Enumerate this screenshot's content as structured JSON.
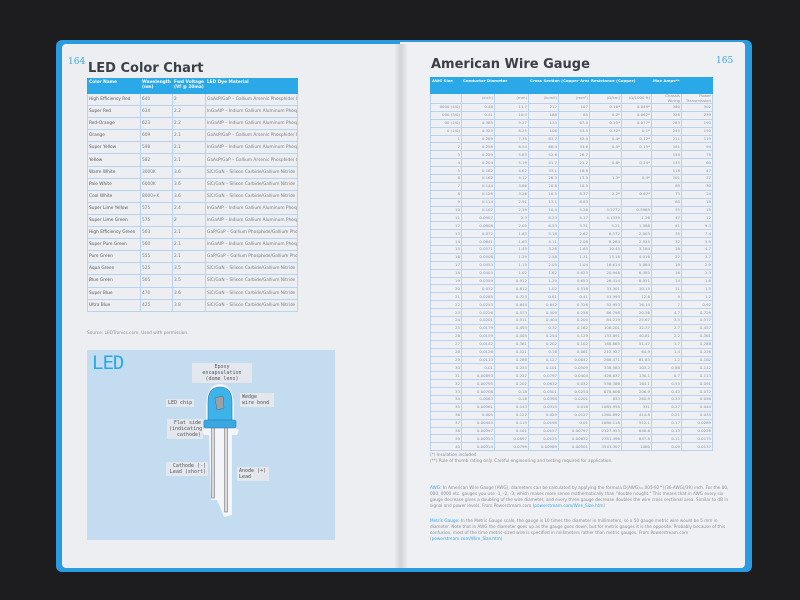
{
  "left_page": {
    "page_number": "164",
    "title": "LED Color Chart",
    "table": {
      "headers": [
        "Color Name",
        "Wavelength (nm)",
        "Fwd Voltage (Vf @ 20ma)",
        "LED Dye Material"
      ],
      "rows": [
        [
          "High Efficiency Red",
          "640",
          "2",
          "GaAsP/GaP – Gallium Arsenic Phosphide/ Gallium Phosphide"
        ],
        [
          "Super Red",
          "634",
          "2.2",
          "InGaAIP – Indium Gallium Aluminum Phosphide"
        ],
        [
          "Red-Orange",
          "623",
          "2.2",
          "InGaAIP – Indium Gallium Aluminum Phosphide"
        ],
        [
          "Orange",
          "609",
          "2.1",
          "GaAsP/GaP – Gallium Arsenic Phosphide/ Gallium Phosphide"
        ],
        [
          "Super Yellow",
          "598",
          "2.1",
          "InGaAIP – Indium Gallium Aluminum Phosphide"
        ],
        [
          "Yellow",
          "582",
          "2.1",
          "GaAsP/GaP – Gallium Arsenic Phosphide/ Gallium Phosphide"
        ],
        [
          "Warm White",
          "3000K",
          "3.6",
          "SiC/GaN – Silicon Carbide/Gallium Nitride"
        ],
        [
          "Pale White",
          "6000K",
          "3.6",
          "SiC/GaN – Silicon Carbide/Gallium Nitride"
        ],
        [
          "Cool White",
          "8000+K",
          "3.6",
          "SiC/GaN – Silicon Carbide/Gallium Nitride"
        ],
        [
          "Super Lime Yellow",
          "575",
          "2.4",
          "InGaAIP – Indium Gallium Aluminum Phosphide"
        ],
        [
          "Super Lime Green",
          "575",
          "2",
          "InGaAIP – Indium Gallium Aluminum Phosphide"
        ],
        [
          "High Efficiency Green",
          "563",
          "2.1",
          "GaP/GaP – Gallium Phosphide/Gallium Phosphide"
        ],
        [
          "Super Pure Green",
          "560",
          "2.1",
          "InGaAIP – Indium Gallium Aluminum Phosphide"
        ],
        [
          "Pure Green",
          "555",
          "2.1",
          "GaP/GaP – Gallium Phosphide/Gallium Phosphide"
        ],
        [
          "Aqua Green",
          "525",
          "3.5",
          "SiC/GaN – Silicon Carbide/Gallium Nitride"
        ],
        [
          "Blue Green",
          "505",
          "3.5",
          "SiC/GaN – Silicon Carbide/Gallium Nitride"
        ],
        [
          "Super Blue",
          "470",
          "3.6",
          "SiC/GaN – Silicon Carbide/Gallium Nitride"
        ],
        [
          "Ultra Blue",
          "425",
          "3.8",
          "SiC/GaN – Silicon Carbide/Gallium Nitride"
        ]
      ]
    },
    "source": "Source: LEDTronics.com. Used with permission.",
    "led_diagram": {
      "title": "LED",
      "labels": {
        "epoxy": "Epoxy encapsulation (dome lens)",
        "chip": "LED chip",
        "wedge": "Wedge wire bond",
        "flat": "Flat side (indicating cathode)",
        "cathode": "Cathode (-) Lead (short)",
        "anode": "Anode (+) Lead"
      }
    }
  },
  "right_page": {
    "page_number": "165",
    "title": "American Wire Gauge",
    "table": {
      "headers": [
        "AWG Size",
        "Conductor Diameter",
        "Cross Section (Copper Area)",
        "Resistance (Copper)",
        "Max Amps**"
      ],
      "subheaders": [
        "",
        "(inch)",
        "(mm)",
        "(kcmil)",
        "(mm²)",
        "(Ω/km)",
        "(Ω/1000 ft)",
        "Chassis Wiring",
        "Power Transmission"
      ],
      "rows": [
        [
          "0000 (4/0)",
          "0.46",
          "11.7",
          "212",
          "107",
          "0.16*",
          "0.049*",
          "380",
          "302"
        ],
        [
          "000 (3/0)",
          "0.41",
          "10.4",
          "168",
          "85",
          "0.2*",
          "0.062*",
          "328",
          "239"
        ],
        [
          "00 (2/0)",
          "0.365",
          "9.27",
          "133",
          "67.4",
          "0.25*",
          "0.077*",
          "283",
          "190"
        ],
        [
          "0 (1/0)",
          "0.325",
          "8.25",
          "106",
          "53.5",
          "0.32*",
          "0.1*",
          "245",
          "150"
        ],
        [
          "1",
          "0.289",
          "7.35",
          "83.7",
          "42.4",
          "0.4*",
          "0.12*",
          "211",
          "119"
        ],
        [
          "2",
          "0.258",
          "6.54",
          "66.4",
          "33.6",
          "0.5*",
          "0.15*",
          "181",
          "94"
        ],
        [
          "3",
          "0.229",
          "5.83",
          "52.6",
          "26.7",
          "",
          "",
          "158",
          "75"
        ],
        [
          "4",
          "0.204",
          "5.19",
          "41.7",
          "21.2",
          "0.8*",
          "0.24*",
          "135",
          "60"
        ],
        [
          "5",
          "0.182",
          "4.62",
          "33.1",
          "16.8",
          "",
          "",
          "118",
          "47"
        ],
        [
          "6",
          "0.162",
          "4.12",
          "26.3",
          "13.3",
          "1.3*",
          "0.4*",
          "101",
          "37"
        ],
        [
          "7",
          "0.144",
          "3.66",
          "20.8",
          "10.5",
          "",
          "",
          "89",
          "30"
        ],
        [
          "8",
          "0.128",
          "3.26",
          "16.5",
          "8.37",
          "2.2*",
          "0.67*",
          "73",
          "24"
        ],
        [
          "9",
          "0.114",
          "2.91",
          "13.1",
          "6.63",
          "",
          "",
          "64",
          "19"
        ],
        [
          "10",
          "0.102",
          "2.59",
          "10.4",
          "5.26",
          "3.2772",
          "0.9989",
          "55",
          "15"
        ],
        [
          "11",
          "0.0907",
          "2.3",
          "8.23",
          "4.17",
          "4.1339",
          "1.26",
          "47",
          "12"
        ],
        [
          "12",
          "0.0808",
          "2.05",
          "6.53",
          "3.31",
          "5.21",
          "1.588",
          "41",
          "9.3"
        ],
        [
          "13",
          "0.072",
          "1.83",
          "5.18",
          "2.62",
          "6.572",
          "2.003",
          "35",
          "7.4"
        ],
        [
          "14",
          "0.0641",
          "1.63",
          "4.11",
          "2.08",
          "8.284",
          "2.525",
          "32",
          "5.9"
        ],
        [
          "15",
          "0.0571",
          "1.45",
          "3.26",
          "1.65",
          "10.45",
          "3.184",
          "28",
          "4.7"
        ],
        [
          "16",
          "0.0508",
          "1.29",
          "2.58",
          "1.31",
          "13.18",
          "4.016",
          "22",
          "3.7"
        ],
        [
          "17",
          "0.0453",
          "1.15",
          "2.05",
          "1.04",
          "16.614",
          "5.064",
          "19",
          "2.9"
        ],
        [
          "18",
          "0.0403",
          "1.02",
          "1.62",
          "0.823",
          "20.948",
          "6.385",
          "16",
          "2.3"
        ],
        [
          "19",
          "0.0359",
          "0.912",
          "1.29",
          "0.653",
          "26.414",
          "8.051",
          "14",
          "1.8"
        ],
        [
          "20",
          "0.032",
          "0.812",
          "1.02",
          "0.518",
          "33.301",
          "10.15",
          "11",
          "1.5"
        ],
        [
          "21",
          "0.0285",
          "0.723",
          "0.81",
          "0.41",
          "41.995",
          "12.8",
          "9",
          "1.2"
        ],
        [
          "22",
          "0.0253",
          "0.644",
          "0.642",
          "0.326",
          "52.953",
          "16.14",
          "7",
          "0.92"
        ],
        [
          "23",
          "0.0226",
          "0.573",
          "0.509",
          "0.258",
          "66.798",
          "20.36",
          "4.7",
          "0.729"
        ],
        [
          "24",
          "0.0201",
          "0.511",
          "0.404",
          "0.205",
          "84.219",
          "25.67",
          "3.5",
          "0.577"
        ],
        [
          "25",
          "0.0179",
          "0.455",
          "0.32",
          "0.162",
          "106.201",
          "32.37",
          "2.7",
          "0.457"
        ],
        [
          "26",
          "0.0159",
          "0.405",
          "0.254",
          "0.129",
          "133.891",
          "40.81",
          "2.2",
          "0.361"
        ],
        [
          "27",
          "0.0142",
          "0.361",
          "0.202",
          "0.102",
          "168.865",
          "51.47",
          "1.7",
          "0.288"
        ],
        [
          "28",
          "0.0126",
          "0.321",
          "0.16",
          "0.081",
          "212.927",
          "64.9",
          "1.4",
          "0.226"
        ],
        [
          "29",
          "0.0113",
          "0.286",
          "0.127",
          "0.0642",
          "268.471",
          "81.83",
          "1.2",
          "0.182"
        ],
        [
          "30",
          "0.01",
          "0.255",
          "0.101",
          "0.0509",
          "338.583",
          "103.2",
          "0.86",
          "0.142"
        ],
        [
          "31",
          "0.00893",
          "0.227",
          "0.0797",
          "0.0404",
          "426.837",
          "130.1",
          "0.7",
          "0.113"
        ],
        [
          "32",
          "0.00795",
          "0.202",
          "0.0632",
          "0.032",
          "538.386",
          "164.1",
          "0.53",
          "0.091"
        ],
        [
          "33",
          "0.00708",
          "0.18",
          "0.0501",
          "0.0254",
          "678.806",
          "206.9",
          "0.43",
          "0.072"
        ],
        [
          "34",
          "0.0063",
          "0.16",
          "0.0398",
          "0.0201",
          "833",
          "260.9",
          "0.33",
          "0.056"
        ],
        [
          "35",
          "0.00561",
          "0.143",
          "0.0315",
          "0.016",
          "1085.958",
          "331",
          "0.27",
          "0.044"
        ],
        [
          "36",
          "0.005",
          "0.127",
          "0.025",
          "0.0127",
          "1360.892",
          "414.8",
          "0.21",
          "0.035"
        ],
        [
          "37",
          "0.00445",
          "0.113",
          "0.0198",
          "0.01",
          "1680.118",
          "512.1",
          "0.17",
          "0.0289"
        ],
        [
          "38",
          "0.00397",
          "0.101",
          "0.0157",
          "0.00797",
          "2127.953",
          "648.6",
          "0.13",
          "0.0228"
        ],
        [
          "39",
          "0.00353",
          "0.0897",
          "0.0125",
          "0.00632",
          "2781.496",
          "847.8",
          "0.11",
          "0.0175"
        ],
        [
          "40",
          "0.00314",
          "0.0799",
          "0.00989",
          "0.00501",
          "3543.307",
          "1080",
          "0.09",
          "0.0137"
        ]
      ]
    },
    "footnotes": [
      "(*) Insulation included",
      "(**) Rule of thumb rating only. Careful engineering and testing required for application."
    ],
    "awg_note": {
      "label": "AWG:",
      "text": " In American Wire Gauge (AWG), diameters can be calculated by applying the formula D(AWG)=.005·92^((36-AWG)/39) inch. For the 00, 000, 0000 etc. gauges you use -1, -2, -3, which makes more sense mathematically than \"double nought.\" This means that in AWG every six gauge decrease gives a doubling of the wire diameter, and every three gauge decrease doubles the wire cross sectional area. Similar to dB in signal and power levels. From Powerstream.com (",
      "link": "powerstream.com/Wire_Size.htm",
      "end": ")"
    },
    "metric_note": {
      "label": "Metric Gauge:",
      "text": " In the Metric Gauge scale, the gauge is 10 times the diameter in millimeters, so a 50 gauge metric wire would be 5 mm in diameter. Note that in AWG the diameter goes up as the gauge goes down, but for metric gauges it is the opposite. Probably because of this confusion, most of the time metric-sized wire is specified in millimeters rather than metric gauges. From Powerstream.com (",
      "link": "powerstream.com/Wire_Size.htm",
      "end": ")"
    }
  },
  "colors": {
    "accent": "#2aa8e8",
    "cover": "#2a9be0",
    "led_panel": "#c4dcf0"
  }
}
